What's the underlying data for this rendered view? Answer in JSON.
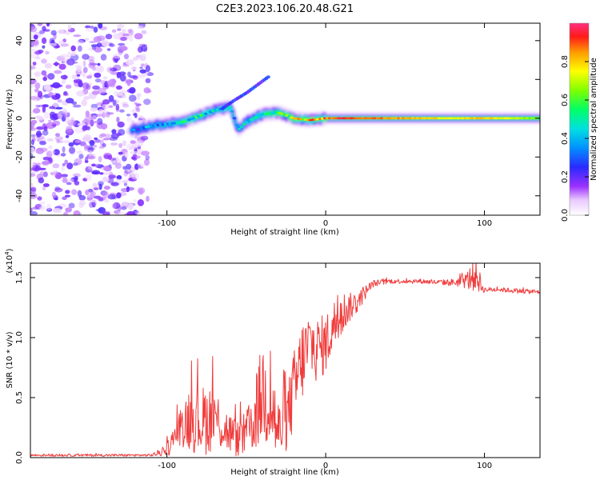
{
  "title": "C2E3.2023.106.20.48.G21",
  "colors": {
    "snr_line": "#f03c3c",
    "axis": "#000000"
  },
  "chart_data": [
    {
      "type": "heatmap",
      "xlabel": "Height of straight line (km)",
      "ylabel": "Frequency (Hz)",
      "xlim": [
        -186,
        135
      ],
      "ylim": [
        -50,
        49
      ],
      "xticks": [
        -100,
        0,
        100
      ],
      "xtick_labels": [
        "-100",
        "0",
        "100"
      ],
      "yticks": [
        -40,
        -20,
        0,
        20,
        40
      ],
      "ytick_labels": [
        "-40",
        "-20",
        "0",
        "20",
        "40"
      ],
      "colorbar": {
        "label": "Normalized spectral amplitude",
        "range": [
          0,
          1
        ],
        "ticks": [
          0,
          0.2,
          0.4,
          0.6,
          0.8
        ],
        "tick_labels": [
          "0.0",
          "0.2",
          "0.4",
          "0.6",
          "0.8"
        ]
      },
      "ridge": {
        "x": [
          -120,
          -110,
          -100,
          -90,
          -80,
          -70,
          -60,
          -55,
          -50,
          -40,
          -30,
          -20,
          -10,
          0,
          10,
          20,
          40,
          60,
          80,
          100,
          120,
          135
        ],
        "y": [
          -6,
          -4,
          -3,
          -2,
          1,
          4,
          6,
          -6,
          -2,
          2,
          3,
          0,
          -1,
          0,
          0,
          0,
          0,
          0,
          0,
          0,
          0,
          0
        ],
        "amplitude": [
          0.3,
          0.35,
          0.4,
          0.45,
          0.5,
          0.4,
          0.45,
          0.35,
          0.4,
          0.45,
          0.55,
          0.7,
          0.8,
          0.85,
          0.95,
          0.9,
          0.85,
          0.8,
          0.75,
          0.8,
          0.7,
          0.6
        ]
      },
      "secondary_branch": {
        "x": [
          -65,
          -58,
          -50,
          -40,
          -35
        ],
        "y": [
          5,
          9,
          13,
          19,
          22
        ]
      },
      "noise_region_x": [
        -186,
        -118
      ]
    },
    {
      "type": "line",
      "xlabel": "Height of straight line (km)",
      "ylabel": "SNR (10 * v/v)",
      "exponent_label": "(x10",
      "exponent_power": "4",
      "exponent_close": ")",
      "xlim": [
        -186,
        135
      ],
      "ylim": [
        0,
        1.62
      ],
      "xticks": [
        -100,
        0,
        100
      ],
      "xtick_labels": [
        "-100",
        "0",
        "100"
      ],
      "yticks": [
        0,
        0.5,
        1.0,
        1.5
      ],
      "ytick_labels": [
        "0.0",
        "0.5",
        "1.0",
        "1.5"
      ],
      "series": [
        {
          "name": "SNR",
          "x": [
            -186,
            -170,
            -150,
            -130,
            -110,
            -102,
            -98,
            -92,
            -85,
            -80,
            -75,
            -70,
            -65,
            -60,
            -55,
            -50,
            -45,
            -40,
            -35,
            -30,
            -25,
            -20,
            -15,
            -10,
            -5,
            0,
            5,
            10,
            15,
            20,
            25,
            30,
            40,
            50,
            60,
            70,
            80,
            88,
            92,
            95,
            98,
            100,
            110,
            120,
            135
          ],
          "values": [
            0.02,
            0.02,
            0.02,
            0.02,
            0.02,
            0.05,
            0.1,
            0.25,
            0.35,
            0.3,
            0.32,
            0.35,
            0.25,
            0.2,
            0.15,
            0.2,
            0.3,
            0.55,
            0.5,
            0.2,
            0.3,
            0.55,
            0.8,
            0.95,
            0.9,
            0.95,
            1.1,
            1.2,
            1.25,
            1.3,
            1.38,
            1.45,
            1.47,
            1.47,
            1.47,
            1.46,
            1.46,
            1.47,
            1.5,
            1.52,
            1.43,
            1.4,
            1.4,
            1.39,
            1.38
          ],
          "noise": [
            0.01,
            0.01,
            0.01,
            0.01,
            0.01,
            0.04,
            0.08,
            0.15,
            0.3,
            0.28,
            0.3,
            0.28,
            0.2,
            0.18,
            0.15,
            0.2,
            0.25,
            0.45,
            0.45,
            0.3,
            0.25,
            0.35,
            0.35,
            0.3,
            0.28,
            0.25,
            0.22,
            0.2,
            0.12,
            0.1,
            0.06,
            0.03,
            0.02,
            0.02,
            0.02,
            0.02,
            0.03,
            0.06,
            0.12,
            0.12,
            0.08,
            0.02,
            0.02,
            0.02,
            0.02
          ]
        }
      ]
    }
  ]
}
